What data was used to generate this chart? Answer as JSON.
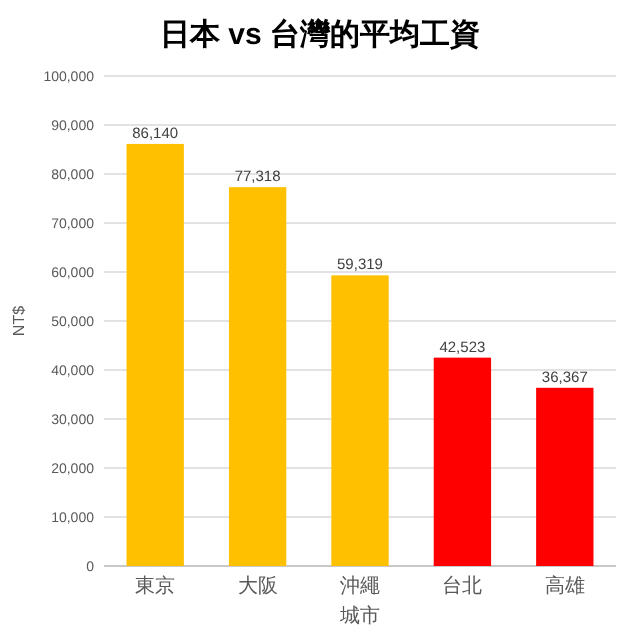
{
  "chart_data": {
    "type": "bar",
    "title": "日本 vs 台灣的平均工資",
    "xlabel": "城市",
    "ylabel": "NT$",
    "categories": [
      "東京",
      "大阪",
      "沖繩",
      "台北",
      "高雄"
    ],
    "values": [
      86140,
      77318,
      59319,
      42523,
      36367
    ],
    "value_labels": [
      "86,140",
      "77,318",
      "59,319",
      "42,523",
      "36,367"
    ],
    "colors": [
      "#ffc000",
      "#ffc000",
      "#ffc000",
      "#ff0000",
      "#ff0000"
    ],
    "ylim": [
      0,
      100000
    ],
    "yticks": [
      0,
      {
        "value": 10000,
        "label": "10,000"
      },
      {
        "value": 20000,
        "label": "20,000"
      },
      {
        "value": 30000,
        "label": "30,000"
      },
      {
        "value": 40000,
        "label": "40,000"
      },
      {
        "value": 50000,
        "label": "50,000"
      },
      {
        "value": 60000,
        "label": "60,000"
      },
      {
        "value": 70000,
        "label": "70,000"
      },
      {
        "value": 80000,
        "label": "80,000"
      },
      {
        "value": 90000,
        "label": "90,000"
      },
      {
        "value": 100000,
        "label": "100,000"
      }
    ],
    "grid": "y"
  }
}
